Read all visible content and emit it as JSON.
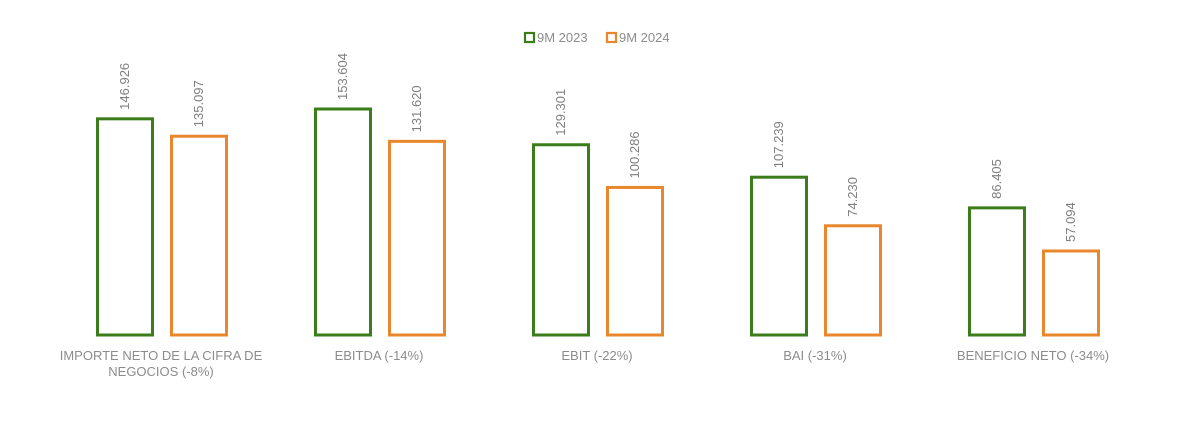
{
  "chart_data": {
    "type": "bar",
    "categories": [
      [
        "IMPORTE NETO DE LA CIFRA DE",
        "NEGOCIOS (-8%)"
      ],
      [
        "EBITDA (-14%)"
      ],
      [
        "EBIT (-22%)"
      ],
      [
        "BAI (-31%)"
      ],
      [
        "BENEFICIO NETO (-34%)"
      ]
    ],
    "series": [
      {
        "name": "9M 2023",
        "color": "#3a7d1a",
        "values": [
          146926,
          153604,
          129301,
          107239,
          86405
        ],
        "labels": [
          "146.926",
          "153.604",
          "129.301",
          "107.239",
          "86.405"
        ]
      },
      {
        "name": "9M 2024",
        "color": "#e8872c",
        "values": [
          135097,
          131620,
          100286,
          74230,
          57094
        ],
        "labels": [
          "135.097",
          "131.620",
          "100.286",
          "74.230",
          "57.094"
        ]
      }
    ],
    "ylim": [
      0,
      160000
    ],
    "grid": false,
    "legend_position": "top-center",
    "bar_style": "outline"
  }
}
